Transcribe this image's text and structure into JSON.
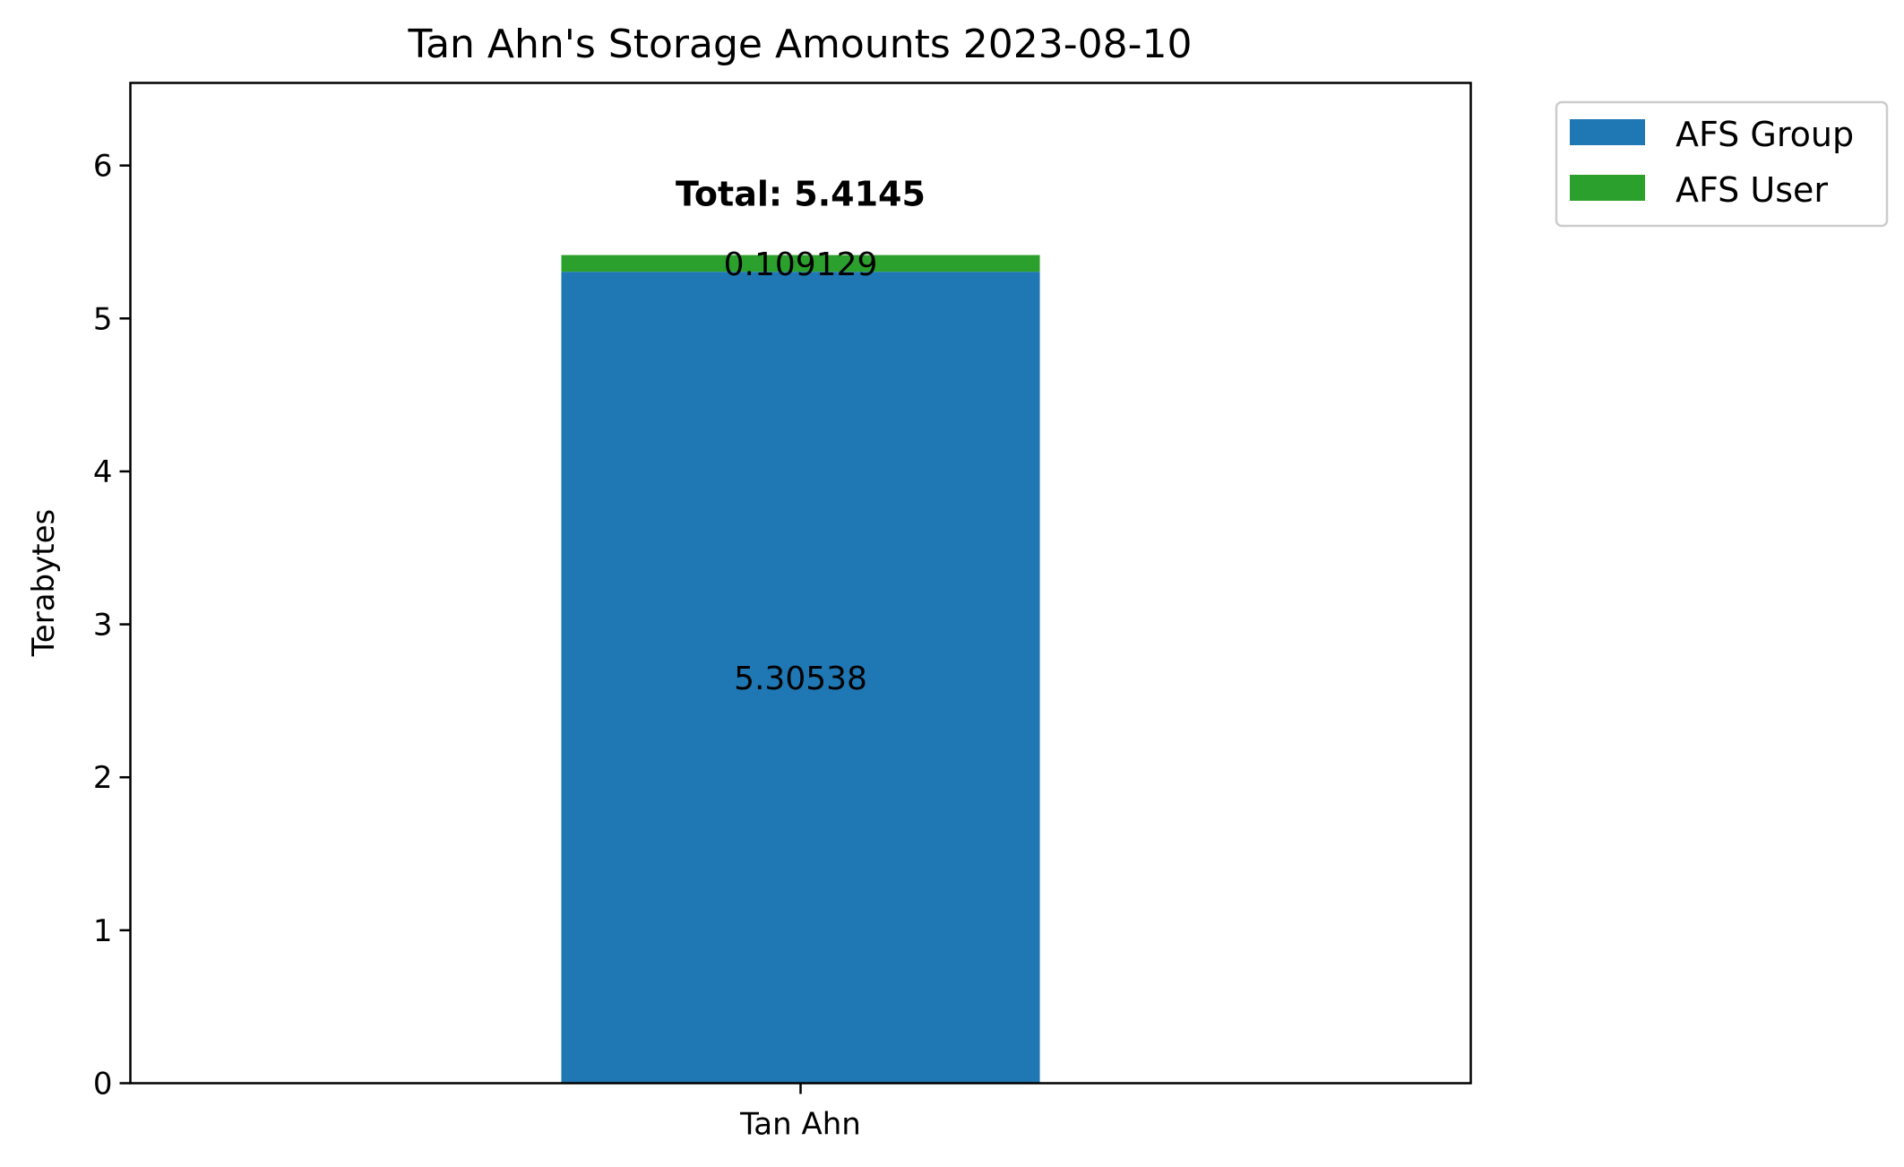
{
  "chart_data": {
    "type": "bar",
    "stacked": true,
    "title": "Tan Ahn's Storage Amounts 2023-08-10",
    "xlabel": "",
    "ylabel": "Terabytes",
    "categories": [
      "Tan Ahn"
    ],
    "series": [
      {
        "name": "AFS Group",
        "color": "#1f77b4",
        "values": [
          5.30538
        ],
        "labels": [
          "5.30538"
        ]
      },
      {
        "name": "AFS User",
        "color": "#2ca02c",
        "values": [
          0.109129
        ],
        "labels": [
          "0.109129"
        ]
      }
    ],
    "totals": [
      "Total: 5.4145"
    ],
    "ylim": [
      0,
      6.54
    ],
    "yticks": [
      0,
      1,
      2,
      3,
      4,
      5,
      6
    ],
    "ytick_labels": [
      "0",
      "1",
      "2",
      "3",
      "4",
      "5",
      "6"
    ],
    "grid": false,
    "legend_position": "outside-top-right"
  }
}
